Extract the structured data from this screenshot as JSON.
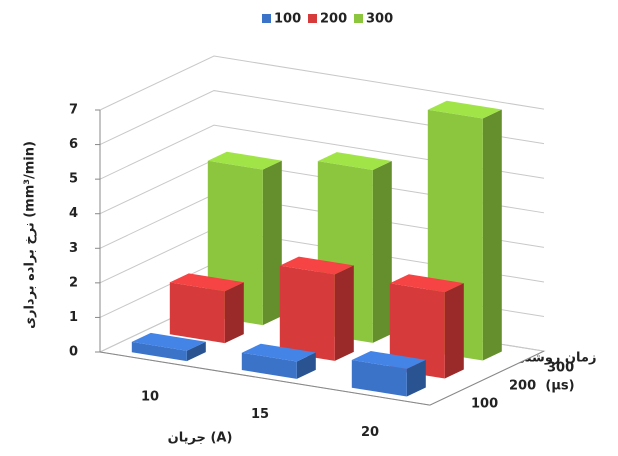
{
  "chart_data": {
    "type": "bar3d",
    "y_label": "نرخ براده برداری (mm³/min)",
    "x_label": "جریان (A)",
    "z_label": [
      "زمان روشنی",
      "(µs)"
    ],
    "categories": [
      "10",
      "15",
      "20"
    ],
    "series": [
      {
        "name": "100",
        "color": "#3b73c9",
        "values": [
          0.3,
          0.5,
          0.8
        ]
      },
      {
        "name": "200",
        "color": "#d63a3a",
        "values": [
          1.5,
          2.5,
          2.5
        ]
      },
      {
        "name": "300",
        "color": "#8cc63f",
        "values": [
          4.5,
          5,
          7
        ]
      }
    ],
    "ylim": [
      0,
      7
    ],
    "yticks": [
      0,
      1,
      2,
      3,
      4,
      5,
      6,
      7
    ],
    "grid": true
  }
}
